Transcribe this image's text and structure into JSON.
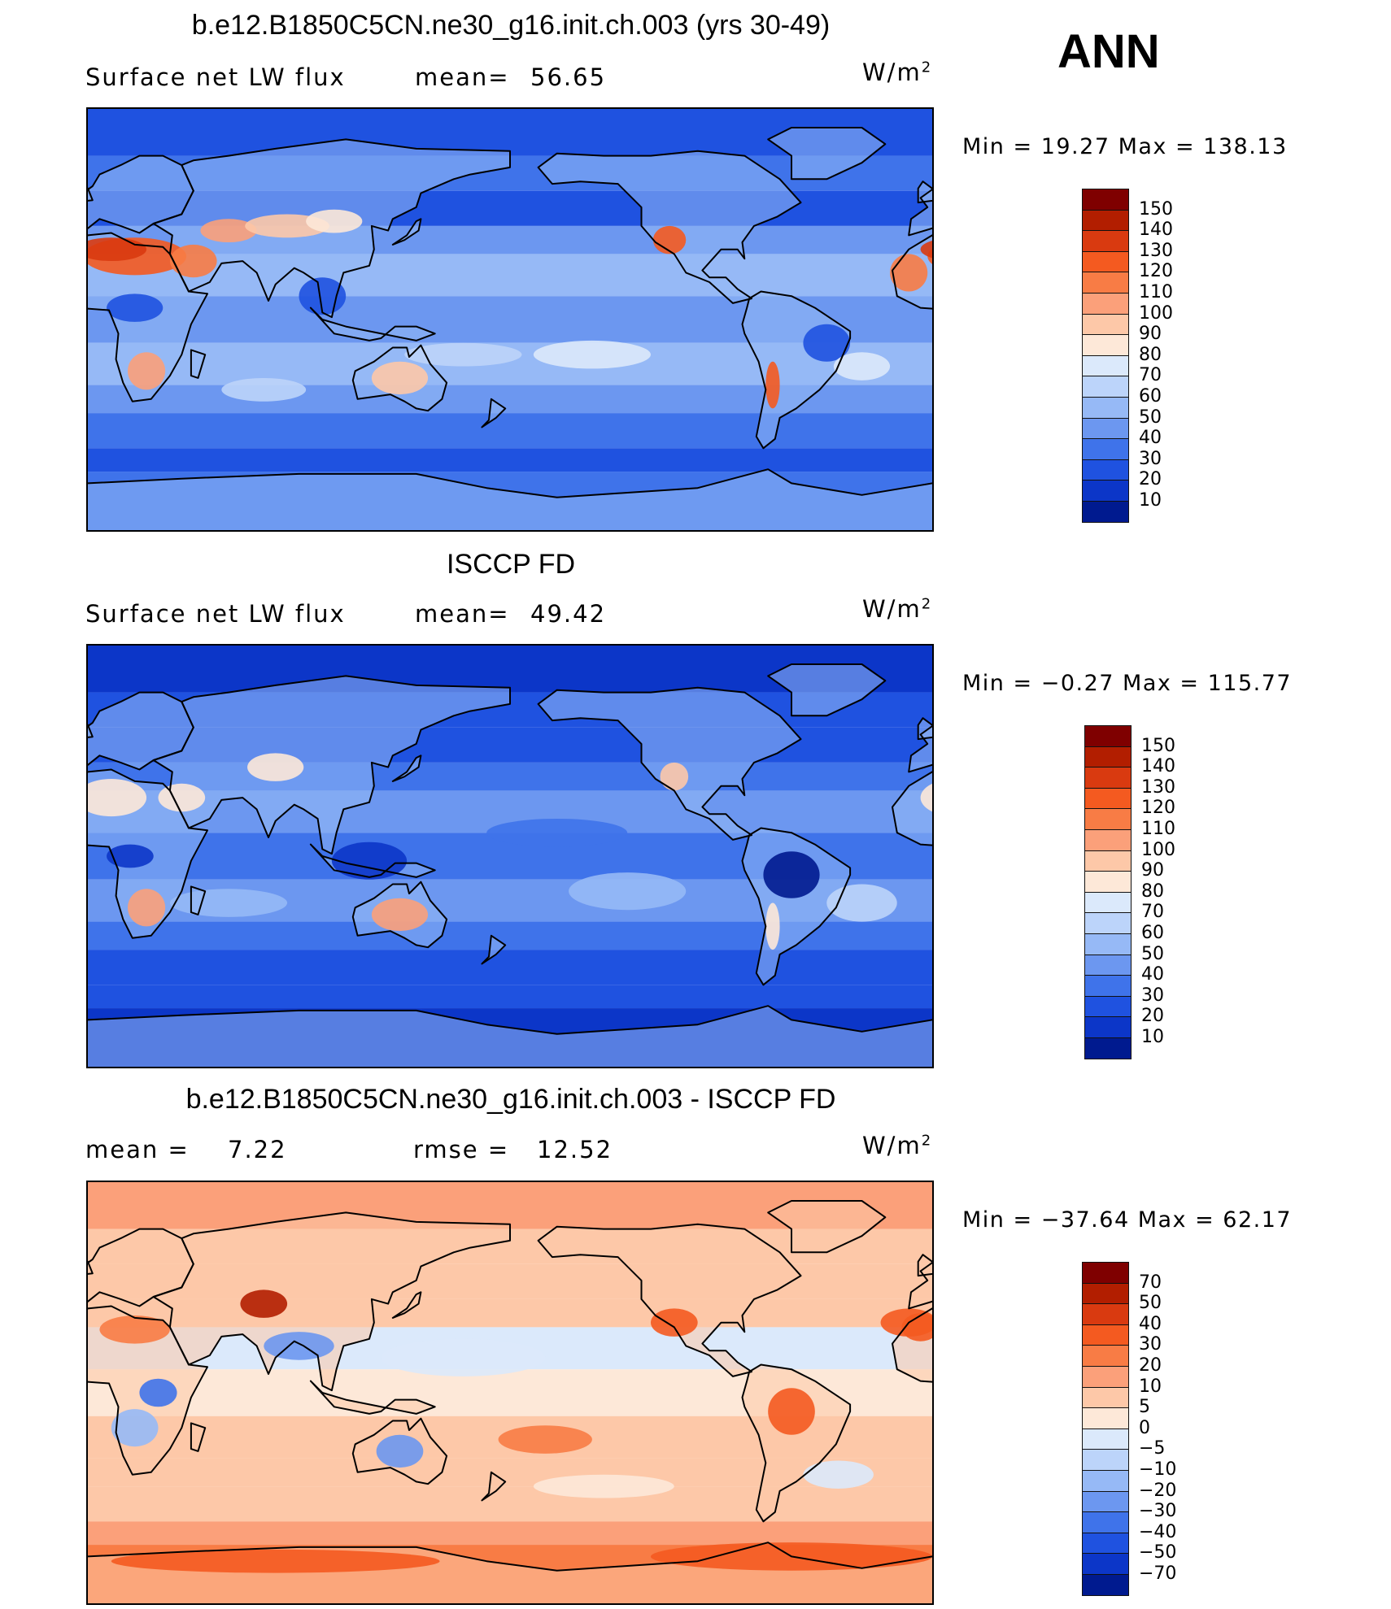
{
  "season": "ANN",
  "panels": [
    {
      "title": "b.e12.B1850C5CN.ne30_g16.init.ch.003 (yrs 30-49)",
      "left_label": "Surface net LW flux",
      "mid_label": "mean=",
      "mid_value": "56.65",
      "units": "W/m",
      "units_sup": "2",
      "range_text": "Min  =    19.27  Max  =  138.13",
      "colorbar_labels": [
        "150",
        "140",
        "130",
        "120",
        "110",
        "100",
        "90",
        "80",
        "70",
        "60",
        "50",
        "40",
        "30",
        "20",
        "10"
      ],
      "scheme": "model"
    },
    {
      "title": "ISCCP FD",
      "left_label": "Surface net LW flux",
      "mid_label": "mean=",
      "mid_value": "49.42",
      "units": "W/m",
      "units_sup": "2",
      "range_text": "Min  =   −0.27  Max  =  115.77",
      "colorbar_labels": [
        "150",
        "140",
        "130",
        "120",
        "110",
        "100",
        "90",
        "80",
        "70",
        "60",
        "50",
        "40",
        "30",
        "20",
        "10"
      ],
      "scheme": "obs"
    },
    {
      "title": "b.e12.B1850C5CN.ne30_g16.init.ch.003 - ISCCP FD",
      "left_label": "mean  =",
      "left_value": "7.22",
      "mid_label": "rmse  =",
      "mid_value": "12.52",
      "units": "W/m",
      "units_sup": "2",
      "range_text": "Min  = −37.64  Max  =    62.17",
      "colorbar_labels": [
        "70",
        "50",
        "40",
        "30",
        "20",
        "10",
        "5",
        "0",
        "−5",
        "−10",
        "−20",
        "−30",
        "−40",
        "−50",
        "−70"
      ],
      "scheme": "diff"
    }
  ],
  "colors": {
    "abs_scale": [
      "#7f0000",
      "#b21e00",
      "#d93a10",
      "#f45a20",
      "#f87c45",
      "#fba07a",
      "#fdc8a8",
      "#fde8d8",
      "#dbe9fb",
      "#bcd4fa",
      "#96b9f6",
      "#6c97f0",
      "#3f73ea",
      "#1f52e0",
      "#0c36c8",
      "#001a8f"
    ],
    "diff_scale": [
      "#7f0000",
      "#b21e00",
      "#d93a10",
      "#f45a20",
      "#f87c45",
      "#fba07a",
      "#fdc8a8",
      "#fde8d8",
      "#dbe9fb",
      "#bcd4fa",
      "#96b9f6",
      "#6c97f0",
      "#3f73ea",
      "#1f52e0",
      "#0c36c8",
      "#001a8f"
    ]
  }
}
